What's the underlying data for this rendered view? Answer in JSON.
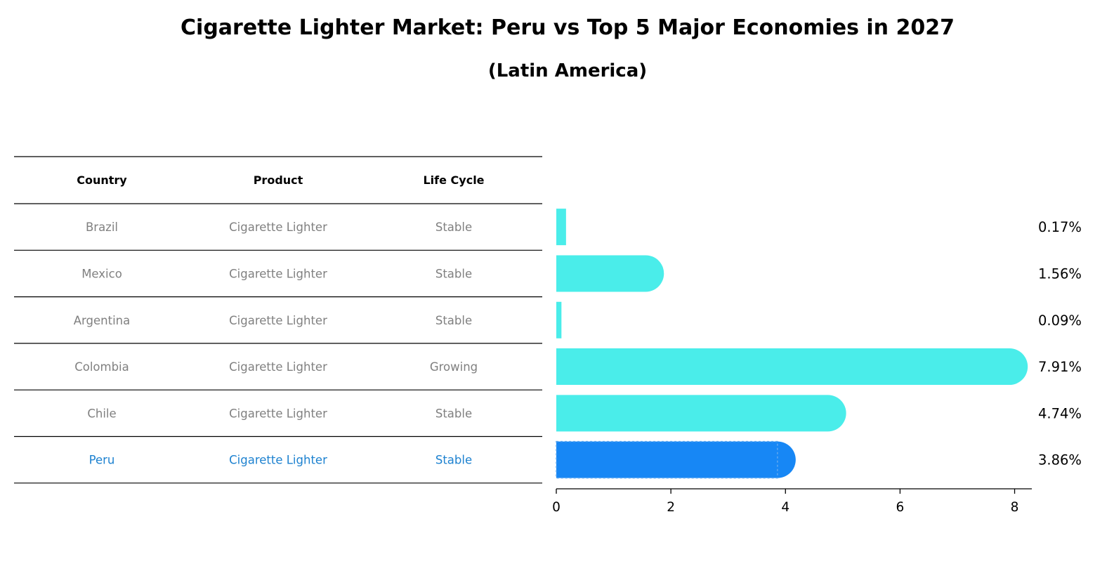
{
  "title": "Cigarette Lighter Market: Peru vs Top 5 Major Economies in 2027",
  "subtitle": "(Latin America)",
  "table": {
    "headers": [
      "Country",
      "Product",
      "Life Cycle"
    ]
  },
  "colors": {
    "bar_default": "#4AEDEA",
    "bar_highlight": "#1787F5",
    "text_muted": "#808080",
    "text_highlight": "#1E82D0",
    "rule": "#000000"
  },
  "chart_data": {
    "type": "bar",
    "orientation": "horizontal",
    "title": "Cigarette Lighter Market: Peru vs Top 5 Major Economies in 2027",
    "subtitle": "(Latin America)",
    "categories": [
      "Brazil",
      "Mexico",
      "Argentina",
      "Colombia",
      "Chile",
      "Peru"
    ],
    "products": [
      "Cigarette Lighter",
      "Cigarette Lighter",
      "Cigarette Lighter",
      "Cigarette Lighter",
      "Cigarette Lighter",
      "Cigarette Lighter"
    ],
    "life_cycle": [
      "Stable",
      "Stable",
      "Stable",
      "Growing",
      "Stable",
      "Stable"
    ],
    "values": [
      0.17,
      1.56,
      0.09,
      7.91,
      4.74,
      3.86
    ],
    "value_labels": [
      "0.17%",
      "1.56%",
      "0.09%",
      "7.91%",
      "4.74%",
      "3.86%"
    ],
    "highlight": "Peru",
    "xticks": [
      "0",
      "2",
      "4",
      "6",
      "8"
    ],
    "xtick_values": [
      0,
      2,
      4,
      6,
      8
    ],
    "xlim": [
      0,
      8.3
    ],
    "xlabel": "",
    "ylabel": "",
    "grid": false,
    "legend": "none"
  }
}
